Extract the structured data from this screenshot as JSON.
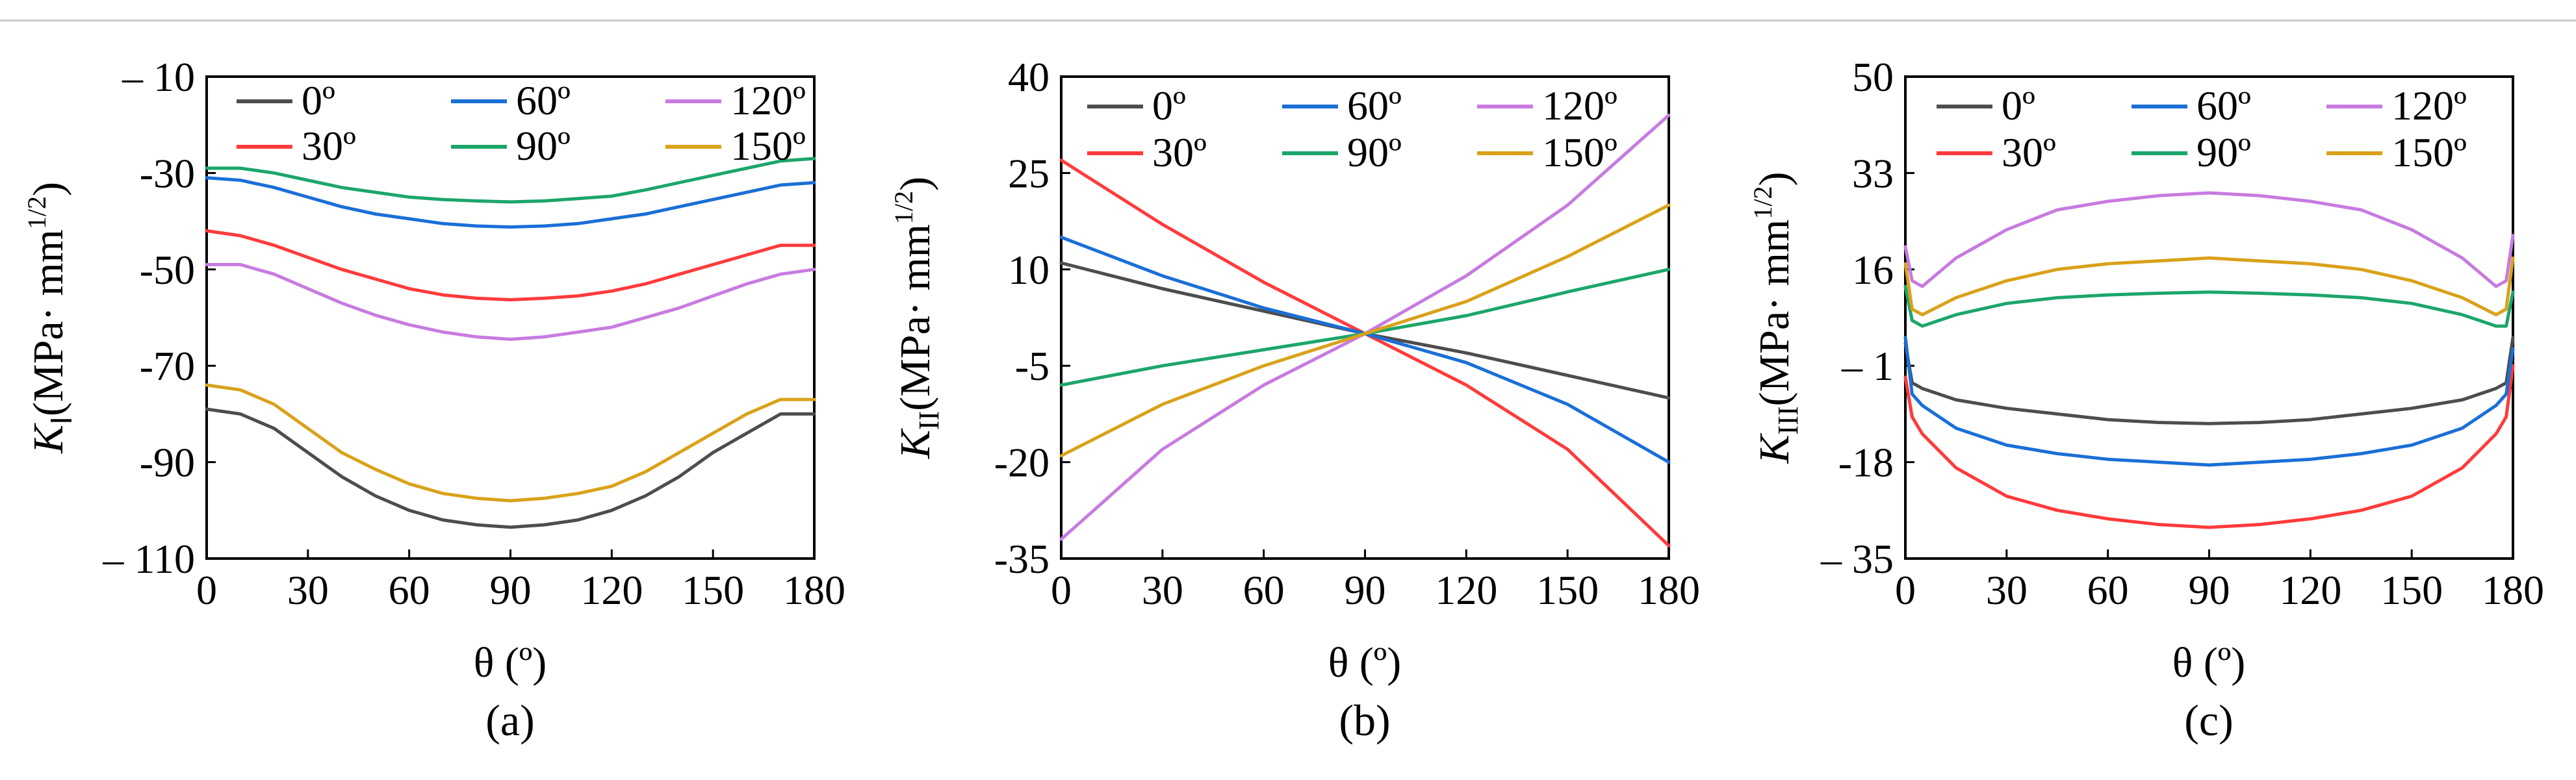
{
  "chart_data": [
    {
      "type": "line",
      "panel_label": "(a)",
      "xlabel": "θ (º)",
      "ylabel_main": "K",
      "ylabel_sub": "Ⅰ",
      "ylabel_units": "(MPa· mm",
      "ylabel_exp": "1/2",
      "ylabel_close": ")",
      "xlim": [
        0,
        180
      ],
      "ylim": [
        -110,
        -10
      ],
      "xticks": [
        0,
        30,
        60,
        90,
        120,
        150,
        180
      ],
      "yticks": [
        -10,
        -30,
        -50,
        -70,
        -90,
        -110
      ],
      "ytick_labels": [
        "– 10",
        "-30",
        "-50",
        "-70",
        "-90",
        "– 110"
      ],
      "x": [
        0,
        10,
        20,
        30,
        40,
        50,
        60,
        70,
        80,
        90,
        100,
        110,
        120,
        130,
        140,
        150,
        160,
        170,
        180
      ],
      "series": [
        {
          "name": "0º",
          "color": "#4d4d4d",
          "values": [
            -79,
            -80,
            -83,
            -88,
            -93,
            -97,
            -100,
            -102,
            -103,
            -103.5,
            -103,
            -102,
            -100,
            -97,
            -93,
            -88,
            -84,
            -80,
            -80
          ]
        },
        {
          "name": "30º",
          "color": "#ff3b3b",
          "values": [
            -42,
            -43,
            -45,
            -47.5,
            -50,
            -52,
            -54,
            -55.3,
            -56,
            -56.3,
            -56,
            -55.5,
            -54.5,
            -53,
            -51,
            -49,
            -47,
            -45,
            -45
          ]
        },
        {
          "name": "60º",
          "color": "#1a6fd6",
          "values": [
            -31,
            -31.5,
            -33,
            -35,
            -37,
            -38.5,
            -39.5,
            -40.5,
            -41,
            -41.2,
            -41,
            -40.5,
            -39.5,
            -38.5,
            -37,
            -35.5,
            -34,
            -32.5,
            -32
          ]
        },
        {
          "name": "90º",
          "color": "#1ca66a",
          "values": [
            -29,
            -29,
            -30,
            -31.5,
            -33,
            -34,
            -35,
            -35.5,
            -35.8,
            -36,
            -35.8,
            -35.3,
            -34.8,
            -33.5,
            -32,
            -30.5,
            -29,
            -27.5,
            -27
          ]
        },
        {
          "name": "120º",
          "color": "#c77be0",
          "values": [
            -49,
            -49,
            -51,
            -54,
            -57,
            -59.5,
            -61.5,
            -63,
            -64,
            -64.5,
            -64,
            -63,
            -62,
            -60,
            -58,
            -55.5,
            -53,
            -51,
            -50
          ]
        },
        {
          "name": "150º",
          "color": "#d9a21a",
          "values": [
            -74,
            -75,
            -78,
            -83,
            -88,
            -91.5,
            -94.5,
            -96.5,
            -97.5,
            -98,
            -97.5,
            -96.5,
            -95,
            -92,
            -88,
            -84,
            -80,
            -77,
            -77
          ]
        }
      ]
    },
    {
      "type": "line",
      "panel_label": "(b)",
      "xlabel": "θ (º)",
      "ylabel_main": "K",
      "ylabel_sub": "II",
      "ylabel_units": "(MPa· mm",
      "ylabel_exp": "1/2",
      "ylabel_close": ")",
      "xlim": [
        0,
        180
      ],
      "ylim": [
        -35,
        40
      ],
      "xticks": [
        0,
        30,
        60,
        90,
        120,
        150,
        180
      ],
      "yticks": [
        40,
        25,
        10,
        -5,
        -20,
        -35
      ],
      "ytick_labels": [
        "40",
        "25",
        "10",
        "-5",
        "-20",
        "-35"
      ],
      "x": [
        0,
        30,
        60,
        90,
        120,
        150,
        180
      ],
      "series": [
        {
          "name": "0º",
          "color": "#4d4d4d",
          "values": [
            11,
            7,
            3.5,
            0,
            -3,
            -6.5,
            -10
          ]
        },
        {
          "name": "30º",
          "color": "#ff3b3b",
          "values": [
            27,
            17,
            8,
            0,
            -8,
            -18,
            -33
          ]
        },
        {
          "name": "60º",
          "color": "#1a6fd6",
          "values": [
            15,
            9,
            4,
            0,
            -4.5,
            -11,
            -20
          ]
        },
        {
          "name": "90º",
          "color": "#1ca66a",
          "values": [
            -8,
            -5,
            -2.5,
            0,
            2.8,
            6.5,
            10
          ]
        },
        {
          "name": "120º",
          "color": "#c77be0",
          "values": [
            -32,
            -18,
            -8,
            0,
            9,
            20,
            34
          ]
        },
        {
          "name": "150º",
          "color": "#d9a21a",
          "values": [
            -19,
            -11,
            -5,
            0,
            5,
            12,
            20
          ]
        }
      ]
    },
    {
      "type": "line",
      "panel_label": "(c)",
      "xlabel": "θ (º)",
      "ylabel_main": "K",
      "ylabel_sub": "III",
      "ylabel_units": "(MPa· mm",
      "ylabel_exp": "1/2",
      "ylabel_close": ")",
      "xlim": [
        0,
        180
      ],
      "ylim": [
        -35,
        50
      ],
      "xticks": [
        0,
        30,
        60,
        90,
        120,
        150,
        180
      ],
      "yticks": [
        50,
        33,
        16,
        -1,
        -18,
        -35
      ],
      "ytick_labels": [
        "50",
        "33",
        "16",
        "– 1",
        "-18",
        "– 35"
      ],
      "x": [
        0,
        2,
        5,
        15,
        30,
        45,
        60,
        75,
        90,
        105,
        120,
        135,
        150,
        165,
        175,
        178,
        180
      ],
      "series": [
        {
          "name": "0º",
          "color": "#4d4d4d",
          "values": [
            3,
            -4,
            -5,
            -7,
            -8.5,
            -9.5,
            -10.5,
            -11,
            -11.2,
            -11,
            -10.5,
            -9.5,
            -8.5,
            -7,
            -5,
            -4,
            4
          ]
        },
        {
          "name": "30º",
          "color": "#ff3b3b",
          "values": [
            -3,
            -10,
            -13,
            -19,
            -24,
            -26.5,
            -28,
            -29,
            -29.5,
            -29,
            -28,
            -26.5,
            -24,
            -19,
            -13,
            -10,
            -1
          ]
        },
        {
          "name": "60º",
          "color": "#1a6fd6",
          "values": [
            4,
            -6,
            -8,
            -12,
            -15,
            -16.5,
            -17.5,
            -18,
            -18.5,
            -18,
            -17.5,
            -16.5,
            -15,
            -12,
            -8,
            -6,
            2
          ]
        },
        {
          "name": "90º",
          "color": "#1ca66a",
          "values": [
            13,
            7,
            6,
            8,
            10,
            11,
            11.5,
            11.8,
            12,
            11.8,
            11.5,
            11,
            10,
            8,
            6,
            6,
            12
          ]
        },
        {
          "name": "120º",
          "color": "#c77be0",
          "values": [
            20,
            14,
            13,
            18,
            23,
            26.5,
            28,
            29,
            29.5,
            29,
            28,
            26.5,
            23,
            18,
            13,
            14,
            22
          ]
        },
        {
          "name": "150º",
          "color": "#d9a21a",
          "values": [
            17,
            9,
            8,
            11,
            14,
            16,
            17,
            17.5,
            18,
            17.5,
            17,
            16,
            14,
            11,
            8,
            9,
            18
          ]
        }
      ]
    }
  ]
}
